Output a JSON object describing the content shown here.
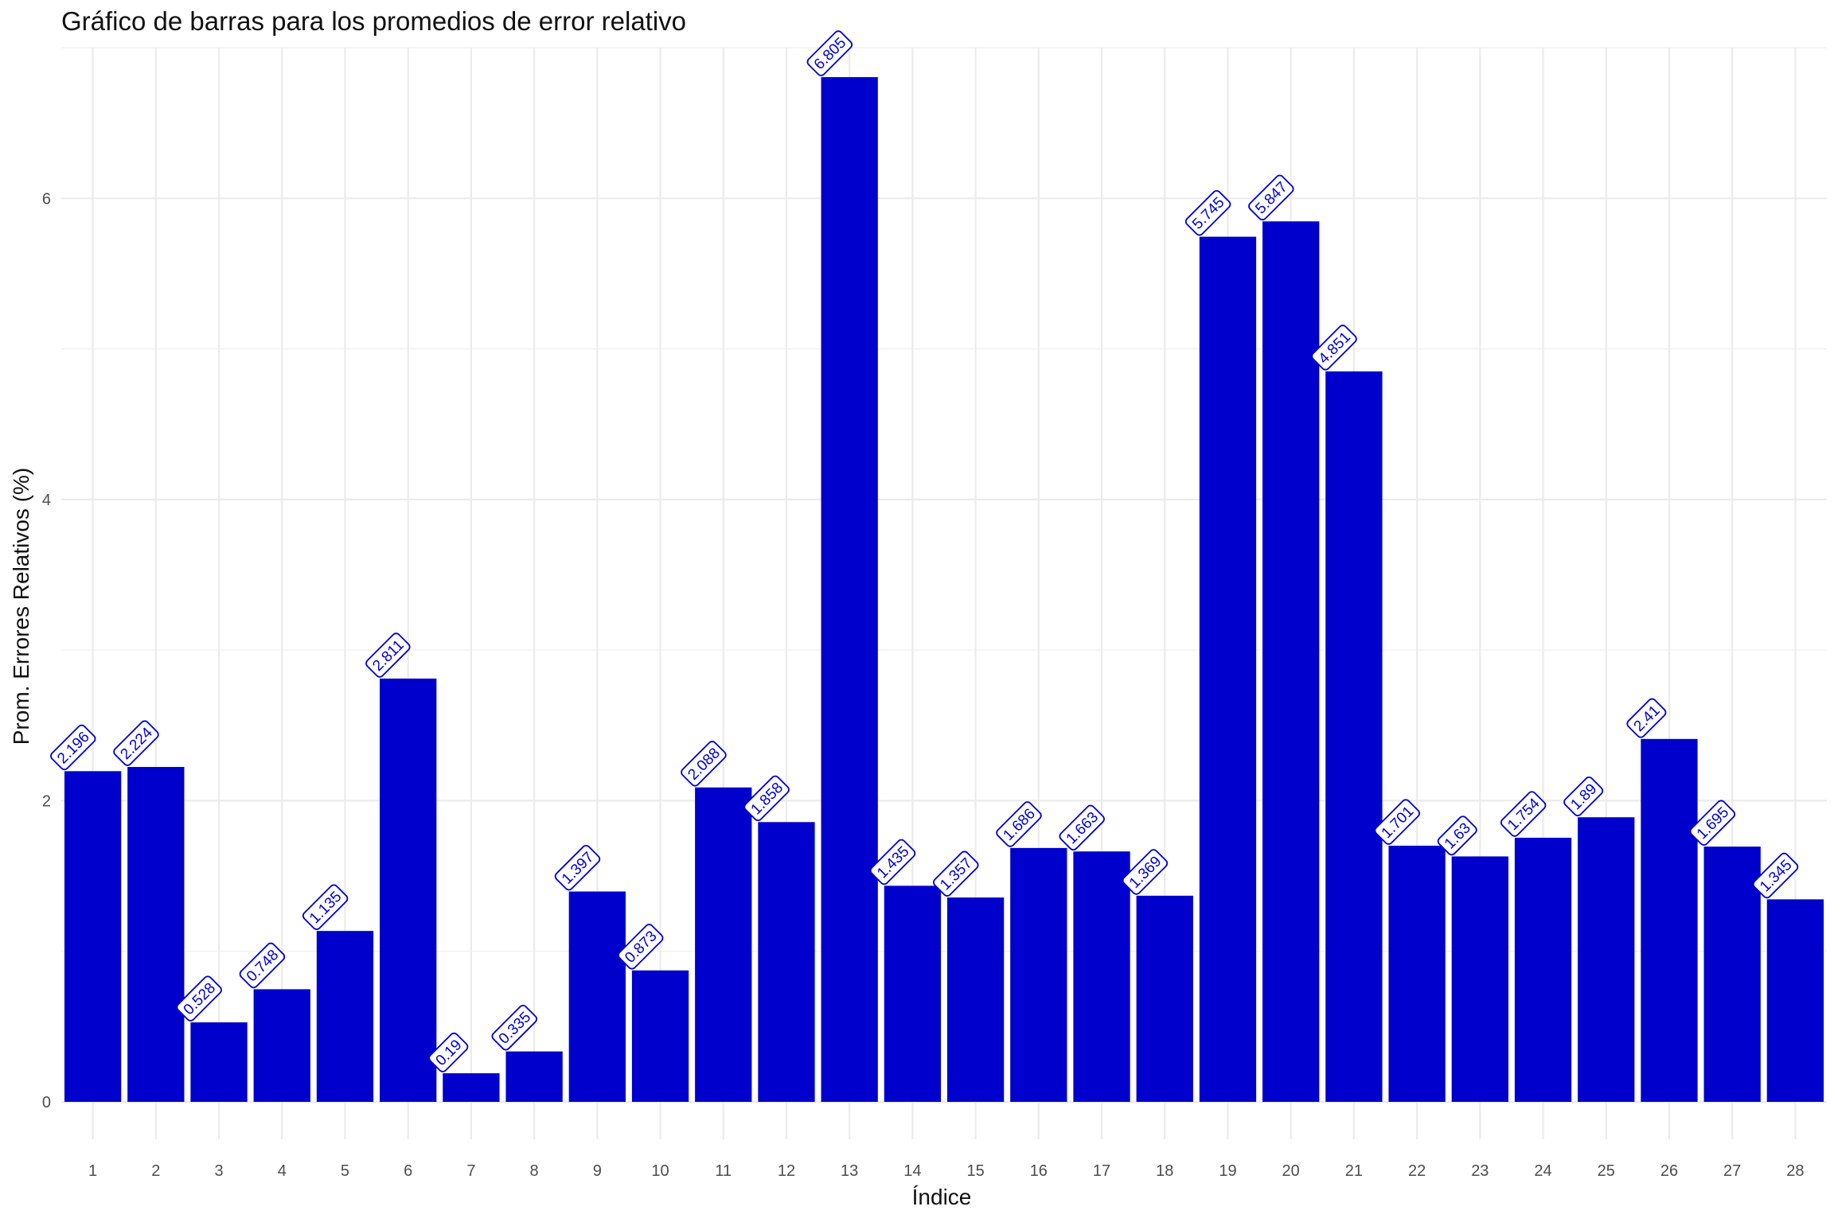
{
  "chart_data": {
    "type": "bar",
    "title": "Gráfico de barras para los promedios de error relativo",
    "xlabel": "Índice",
    "ylabel": "Prom. Errores Relativos (%)",
    "categories": [
      "1",
      "2",
      "3",
      "4",
      "5",
      "6",
      "7",
      "8",
      "9",
      "10",
      "11",
      "12",
      "13",
      "14",
      "15",
      "16",
      "17",
      "18",
      "19",
      "20",
      "21",
      "22",
      "23",
      "24",
      "25",
      "26",
      "27",
      "28"
    ],
    "values": [
      2.196,
      2.224,
      0.528,
      0.748,
      1.135,
      2.811,
      0.19,
      0.335,
      1.397,
      0.873,
      2.088,
      1.858,
      6.805,
      1.435,
      1.357,
      1.686,
      1.663,
      1.369,
      5.745,
      5.847,
      4.851,
      1.701,
      1.63,
      1.754,
      1.89,
      2.41,
      1.695,
      1.345
    ],
    "data_labels": [
      "2.196",
      "2.224",
      "0.528",
      "0.748",
      "1.135",
      "2.811",
      "0.19",
      "0.335",
      "1.397",
      "0.873",
      "2.088",
      "1.858",
      "6.805",
      "1.435",
      "1.357",
      "1.686",
      "1.663",
      "1.369",
      "5.745",
      "5.847",
      "4.851",
      "1.701",
      "1.63",
      "1.754",
      "1.89",
      "2.41",
      "1.695",
      "1.345"
    ],
    "y_ticks": [
      0,
      2,
      4,
      6
    ],
    "y_tick_labels": [
      "0",
      "2",
      "4",
      "6"
    ],
    "ylim": [
      0,
      7
    ],
    "grid": true,
    "colors": {
      "bar": "#0000cd",
      "label_text": "#0000cd",
      "label_border": "#0000cd",
      "grid": "#ebebeb",
      "text": "#4d4d4d"
    }
  }
}
